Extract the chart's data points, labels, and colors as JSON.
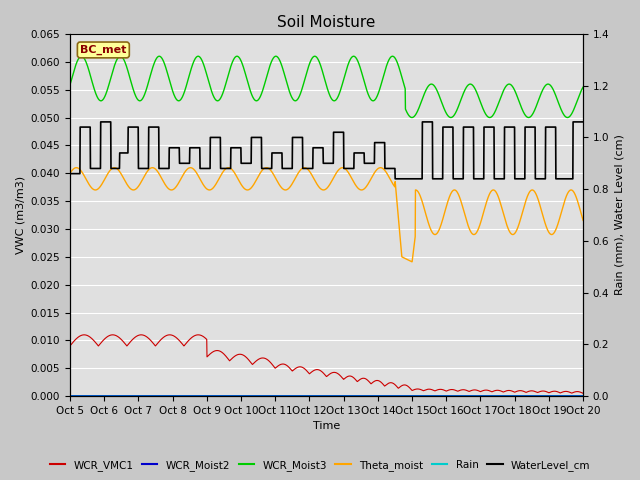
{
  "title": "Soil Moisture",
  "xlabel": "Time",
  "ylabel_left": "VWC (m3/m3)",
  "ylabel_right": "Rain (mm), Water Level (cm)",
  "ylim_left": [
    0.0,
    0.065
  ],
  "ylim_right": [
    0.0,
    1.4
  ],
  "yticks_left": [
    0.0,
    0.005,
    0.01,
    0.015,
    0.02,
    0.025,
    0.03,
    0.035,
    0.04,
    0.045,
    0.05,
    0.055,
    0.06,
    0.065
  ],
  "yticks_right": [
    0.0,
    0.2,
    0.4,
    0.6,
    0.8,
    1.0,
    1.2,
    1.4
  ],
  "annotation_text": "BC_met",
  "annotation_color": "#8B0000",
  "annotation_bg": "#FFFF99",
  "legend_entries": [
    "WCR_VMC1",
    "WCR_Moist2",
    "WCR_Moist3",
    "Theta_moist",
    "Rain",
    "WaterLevel_cm"
  ],
  "line_colors": [
    "#cc0000",
    "#0000cc",
    "#00cc00",
    "#FFA500",
    "#00CCCC",
    "#000000"
  ],
  "fig_bg": "#c8c8c8",
  "plot_bg": "#e0e0e0",
  "grid_color": "#ffffff"
}
